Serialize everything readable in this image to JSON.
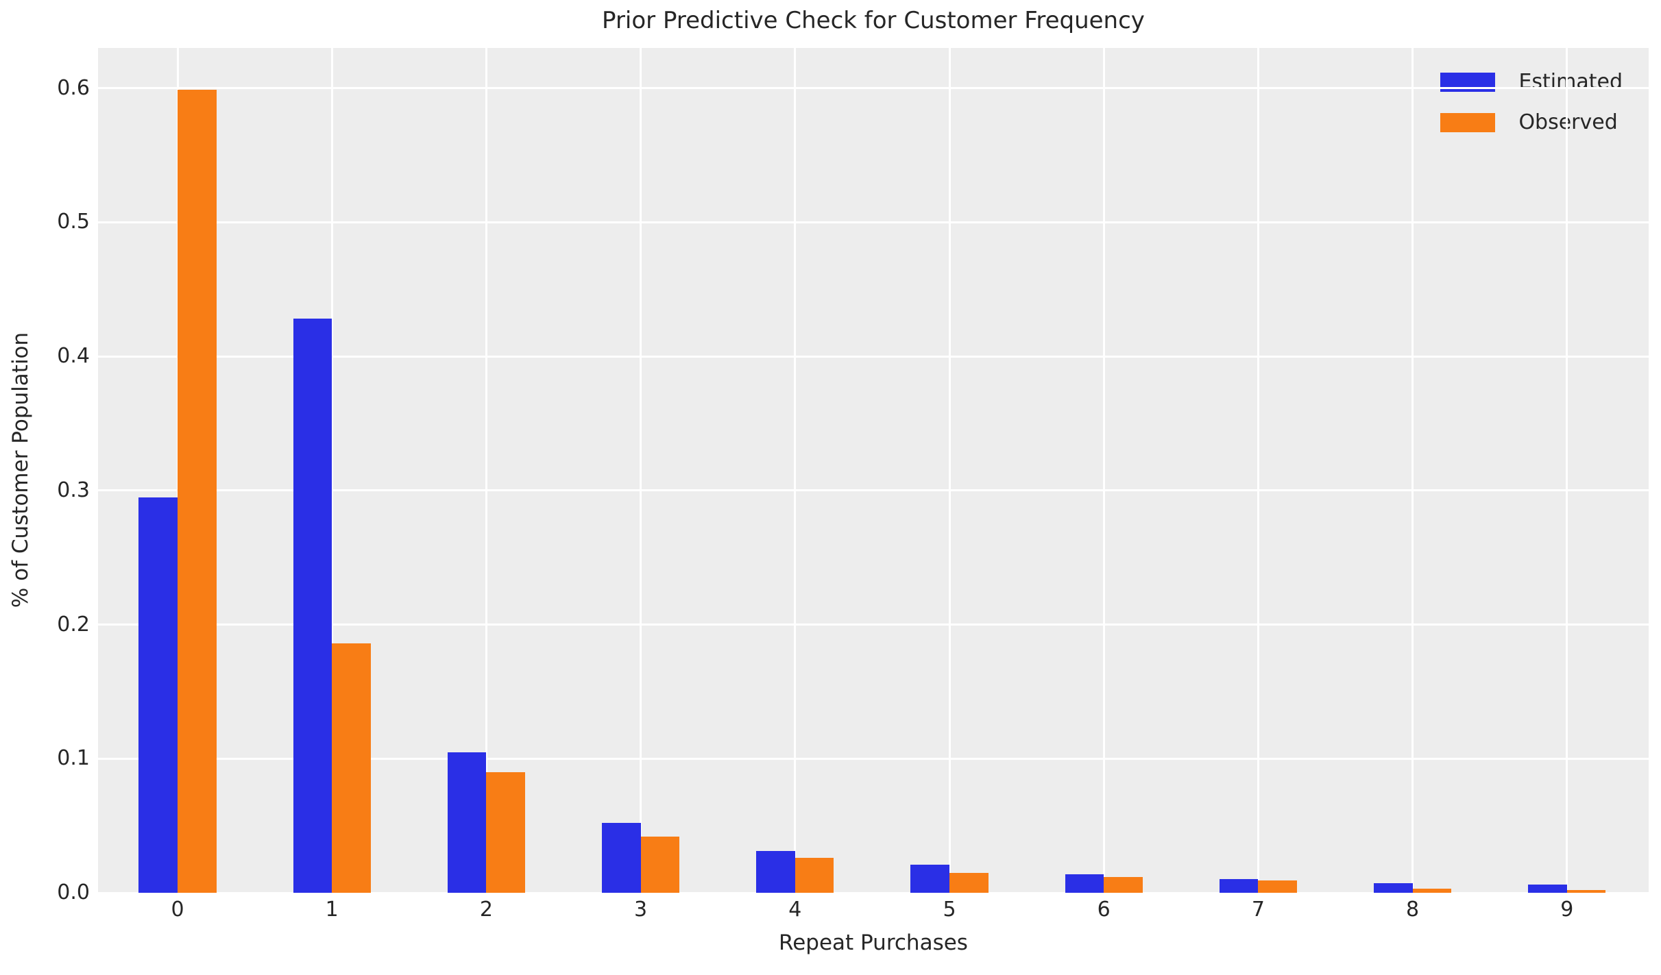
{
  "chart_data": {
    "type": "bar",
    "title": "Prior Predictive Check for Customer Frequency",
    "xlabel": "Repeat Purchases",
    "ylabel": "% of Customer Population",
    "categories": [
      "0",
      "1",
      "2",
      "3",
      "4",
      "5",
      "6",
      "7",
      "8",
      "9"
    ],
    "series": [
      {
        "name": "Estimated",
        "color": "#2a2fe6",
        "values": [
          0.295,
          0.428,
          0.105,
          0.052,
          0.031,
          0.021,
          0.014,
          0.01,
          0.007,
          0.006
        ]
      },
      {
        "name": "Observed",
        "color": "#f87d15",
        "values": [
          0.599,
          0.186,
          0.09,
          0.042,
          0.026,
          0.015,
          0.012,
          0.009,
          0.003,
          0.002
        ]
      }
    ],
    "yticks": [
      "0.0",
      "0.1",
      "0.2",
      "0.3",
      "0.4",
      "0.5",
      "0.6"
    ],
    "ylim": [
      0,
      0.63
    ],
    "grid": true,
    "legend_position": "upper right",
    "plot_bg_color": "#ededed",
    "grid_color": "#ffffff",
    "text_color": "#262626"
  }
}
